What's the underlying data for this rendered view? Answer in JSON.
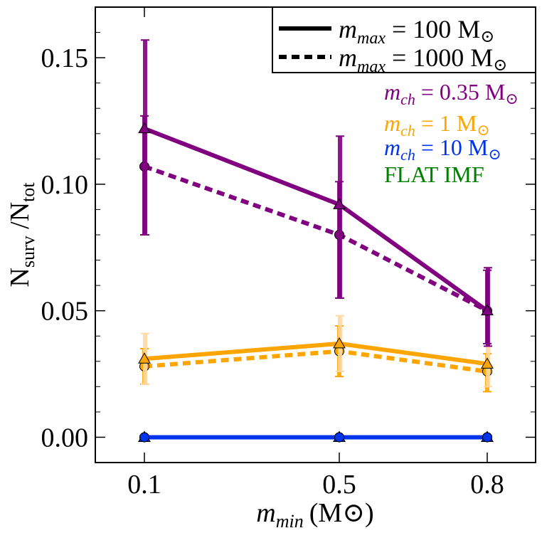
{
  "chart_data": {
    "type": "line",
    "title": "",
    "xlabel_var": "m",
    "xlabel_sub": "min",
    "xlabel_unit": "(M",
    "xlabel_close": ")",
    "ylabel_N1": "N",
    "ylabel_sub1": "surv",
    "ylabel_sep": " /N",
    "ylabel_sub2": "tot",
    "x_categories": [
      "0.1",
      "0.5",
      "0.8"
    ],
    "y_ticks": [
      "0.00",
      "0.05",
      "0.10",
      "0.15"
    ],
    "y_tick_values": [
      0.0,
      0.05,
      0.1,
      0.15
    ],
    "ylim": [
      -0.01,
      0.17
    ],
    "legend_placement": "top-right",
    "legend": {
      "solid": {
        "var": "m",
        "sub": "max",
        "rest": " = 100 M"
      },
      "dashed": {
        "var": "m",
        "sub": "max",
        "rest": " = 1000 M"
      }
    },
    "annotations": [
      {
        "var": "m",
        "sub": "ch",
        "rest": " = 0.35 M",
        "color": "#800080",
        "sun": true
      },
      {
        "var": "m",
        "sub": "ch",
        "rest": " = 1 M",
        "color": "#FFA500",
        "sun": true
      },
      {
        "var": "m",
        "sub": "ch",
        "rest": " = 10 M",
        "color": "#0033EE",
        "sun": true
      },
      {
        "var": "",
        "sub": "",
        "rest": "FLAT IMF",
        "color": "#008000",
        "sun": false
      }
    ],
    "series": [
      {
        "name": "m_ch=0.35, m_max=100",
        "color": "#800080",
        "style": "solid",
        "marker": "triangle",
        "errcolor": "#800080",
        "values": [
          0.122,
          0.092,
          0.05
        ],
        "err_low": [
          0.042,
          0.037,
          0.014
        ],
        "err_high": [
          0.035,
          0.027,
          0.017
        ]
      },
      {
        "name": "m_ch=0.35, m_max=1000",
        "color": "#800080",
        "style": "dashed",
        "marker": "circle",
        "errcolor": "#800080",
        "values": [
          0.107,
          0.08,
          0.05
        ],
        "err_low": [
          0.027,
          0.025,
          0.013
        ],
        "err_high": [
          0.02,
          0.021,
          0.016
        ]
      },
      {
        "name": "m_ch=1, m_max=100",
        "color": "#FFA500",
        "style": "solid",
        "marker": "triangle",
        "errcolor": "#FFD9A0",
        "values": [
          0.031,
          0.037,
          0.029
        ],
        "err_low": [
          0.01,
          0.011,
          0.009
        ],
        "err_high": [
          0.01,
          0.011,
          0.008
        ]
      },
      {
        "name": "m_ch=1, m_max=1000",
        "color": "#FFA500",
        "style": "dashed",
        "marker": "circle",
        "errcolor": "#FFA500",
        "values": [
          0.028,
          0.034,
          0.026
        ],
        "err_low": [
          0.007,
          0.01,
          0.008
        ],
        "err_high": [
          0.007,
          0.01,
          0.007
        ]
      },
      {
        "name": "m_ch=10, m_max=100",
        "color": "#0033EE",
        "style": "solid",
        "marker": "triangle",
        "errcolor": "#0033EE",
        "values": [
          0.0,
          0.0,
          0.0
        ],
        "err_low": [
          0,
          0,
          0
        ],
        "err_high": [
          0,
          0,
          0
        ]
      },
      {
        "name": "m_ch=10, m_max=1000",
        "color": "#0033EE",
        "style": "dashed",
        "marker": "circle",
        "errcolor": "#0033EE",
        "values": [
          0.0,
          0.0,
          0.0
        ],
        "err_low": [
          0,
          0,
          0
        ],
        "err_high": [
          0,
          0,
          0
        ]
      },
      {
        "name": "FLAT IMF, m_max=100",
        "color": "#006400",
        "style": "solid",
        "marker": "triangle",
        "errcolor": "#006400",
        "values": [
          0.0,
          0.0,
          0.0
        ],
        "err_low": [
          0,
          0,
          0
        ],
        "err_high": [
          0,
          0,
          0
        ]
      },
      {
        "name": "FLAT IMF, m_max=1000",
        "color": "#006400",
        "style": "dashed",
        "marker": "circle",
        "errcolor": "#006400",
        "values": [
          0.0,
          0.0,
          0.0
        ],
        "err_low": [
          0,
          0,
          0
        ],
        "err_high": [
          0,
          0,
          0
        ]
      }
    ]
  }
}
